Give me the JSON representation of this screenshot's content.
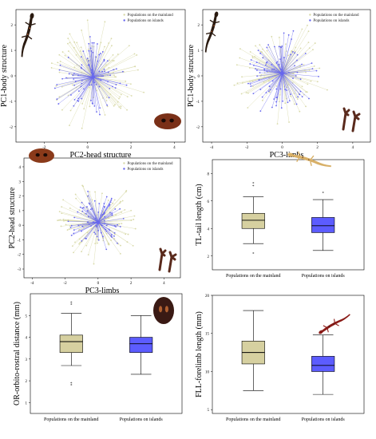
{
  "colors": {
    "mainland": "#d8d9a8",
    "islands": "#6666ee",
    "box_mainland": "#d6d0a0",
    "box_islands": "#5c5cff"
  },
  "legend": {
    "mainland": "Populations on the mainland",
    "islands": "Populations on islands"
  },
  "chart_data": [
    {
      "id": "pca1",
      "type": "scatter",
      "xlabel": "PC2-head structure",
      "ylabel": "PC1-body structure",
      "xticks": [
        "-2",
        "0",
        "2",
        "4"
      ],
      "yticks": [
        "2",
        "1",
        "0",
        "-1",
        "-2"
      ],
      "xlim": [
        -3.3,
        4.5
      ],
      "ylim": [
        -2.6,
        2.6
      ],
      "center": [
        0.25,
        -0.05
      ],
      "series": [
        {
          "name": "Populations on the mainland",
          "spread": [
            1.9,
            1.6
          ],
          "n": 110
        },
        {
          "name": "Populations on islands",
          "spread": [
            1.4,
            1.2
          ],
          "n": 90
        }
      ]
    },
    {
      "id": "pca2",
      "type": "scatter",
      "xlabel": "PC3-limbs",
      "ylabel": "PC1-body structure",
      "xticks": [
        "-4",
        "-2",
        "0",
        "2",
        "4"
      ],
      "yticks": [
        "2",
        "1",
        "0",
        "-1",
        "-2"
      ],
      "xlim": [
        -4.5,
        5.0
      ],
      "ylim": [
        -2.6,
        2.6
      ],
      "center": [
        0.0,
        0.1
      ],
      "series": [
        {
          "name": "Populations on the mainland",
          "spread": [
            2.1,
            1.5
          ],
          "n": 110
        },
        {
          "name": "Populations on islands",
          "spread": [
            1.5,
            1.3
          ],
          "n": 90
        }
      ]
    },
    {
      "id": "pca3",
      "type": "scatter",
      "xlabel": "PC3-limbs",
      "ylabel": "PC2-head structure",
      "xticks": [
        "-4",
        "-2",
        "0",
        "2",
        "4"
      ],
      "yticks": [
        "4",
        "3",
        "2",
        "1",
        "0",
        "-1",
        "-2",
        "-3"
      ],
      "xlim": [
        -4.5,
        5.0
      ],
      "ylim": [
        -3.6,
        4.6
      ],
      "center": [
        0.0,
        0.2
      ],
      "series": [
        {
          "name": "Populations on the mainland",
          "spread": [
            2.0,
            2.0
          ],
          "n": 110
        },
        {
          "name": "Populations on islands",
          "spread": [
            1.4,
            1.6
          ],
          "n": 90
        }
      ]
    },
    {
      "id": "tl",
      "type": "box",
      "ylabel": "TL-tail length (cm)",
      "categories": [
        "Populations on the mainland",
        "Populations on islands"
      ],
      "yticks": [
        "2",
        "4",
        "6",
        "8"
      ],
      "ylim": [
        1,
        9
      ],
      "boxes": [
        {
          "min": 2.9,
          "q1": 4.0,
          "median": 4.6,
          "q3": 5.1,
          "max": 6.3,
          "outliers": [
            7.3,
            7.1,
            2.2
          ]
        },
        {
          "min": 2.4,
          "q1": 3.7,
          "median": 4.2,
          "q3": 4.8,
          "max": 6.1,
          "outliers": [
            6.6
          ]
        }
      ]
    },
    {
      "id": "or",
      "type": "box",
      "ylabel": "OR-orbito-rostral distance (mm)",
      "categories": [
        "Populations on the mainland",
        "Populations on islands"
      ],
      "yticks": [
        "1",
        "2",
        "3",
        "4",
        "5"
      ],
      "ylim": [
        0.5,
        6
      ],
      "boxes": [
        {
          "min": 2.7,
          "q1": 3.3,
          "median": 3.8,
          "q3": 4.1,
          "max": 5.1,
          "outliers": [
            5.6,
            5.5,
            1.9,
            1.8
          ]
        },
        {
          "min": 2.3,
          "q1": 3.3,
          "median": 3.7,
          "q3": 4.0,
          "max": 5.0,
          "outliers": []
        }
      ]
    },
    {
      "id": "fll",
      "type": "box",
      "ylabel": "FLL-forelimb length (mm)",
      "categories": [
        "Populations on the mainland",
        "Populations on islands"
      ],
      "yticks": [
        "5",
        "10",
        "15",
        "20"
      ],
      "ylim": [
        4.5,
        20
      ],
      "boxes": [
        {
          "min": 7.5,
          "q1": 11.0,
          "median": 12.5,
          "q3": 14.0,
          "max": 18.0,
          "outliers": []
        },
        {
          "min": 7.0,
          "q1": 10.0,
          "median": 10.8,
          "q3": 12.0,
          "max": 14.8,
          "outliers": []
        }
      ]
    }
  ]
}
